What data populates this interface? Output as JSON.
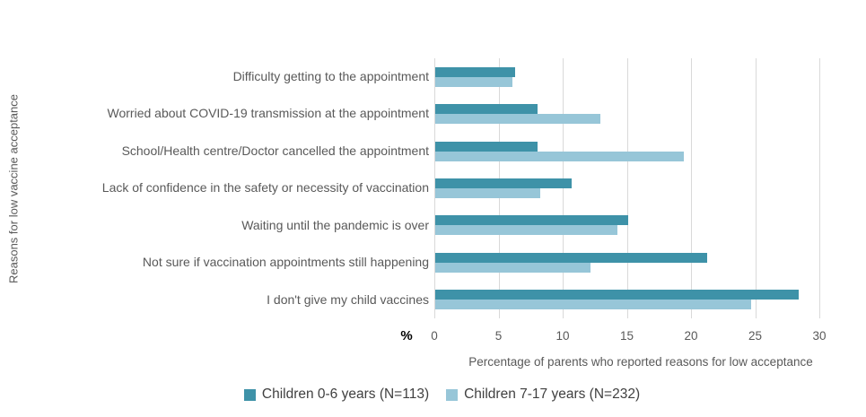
{
  "chart_data": {
    "type": "bar",
    "orientation": "horizontal",
    "title": "",
    "ylabel": "Reasons for low vaccine acceptance",
    "xlabel": "Percentage of parents who reported reasons for low acceptance",
    "x_unit_label": "%",
    "xlim": [
      0,
      30
    ],
    "xticks": [
      0,
      5,
      10,
      15,
      20,
      25,
      30
    ],
    "grid": "vertical-gridlines-on",
    "legend_position": "bottom-center",
    "categories": [
      "Difficulty getting to the appointment",
      "Worried about COVID-19 transmission at the appointment",
      "School/Health centre/Doctor cancelled the appointment",
      "Lack of confidence in the safety or necessity of vaccination",
      "Waiting until the pandemic is over",
      "Not sure if vaccination appointments still happening",
      "I don't give my child vaccines"
    ],
    "series": [
      {
        "name": "Children 0-6 years (N=113)",
        "color": "#3E92A8",
        "values": [
          6.2,
          8.0,
          8.0,
          10.6,
          15.0,
          21.2,
          28.3
        ]
      },
      {
        "name": "Children 7-17 years (N=232)",
        "color": "#97C6D8",
        "values": [
          6.0,
          12.9,
          19.4,
          8.2,
          14.2,
          12.1,
          24.6
        ]
      }
    ]
  },
  "colors": {
    "gridline": "#D9D9D9",
    "axis_text": "#595959",
    "category_text": "#595959",
    "legend_text": "#404040",
    "percent_symbol": "#000000",
    "background": "#FFFFFF"
  }
}
